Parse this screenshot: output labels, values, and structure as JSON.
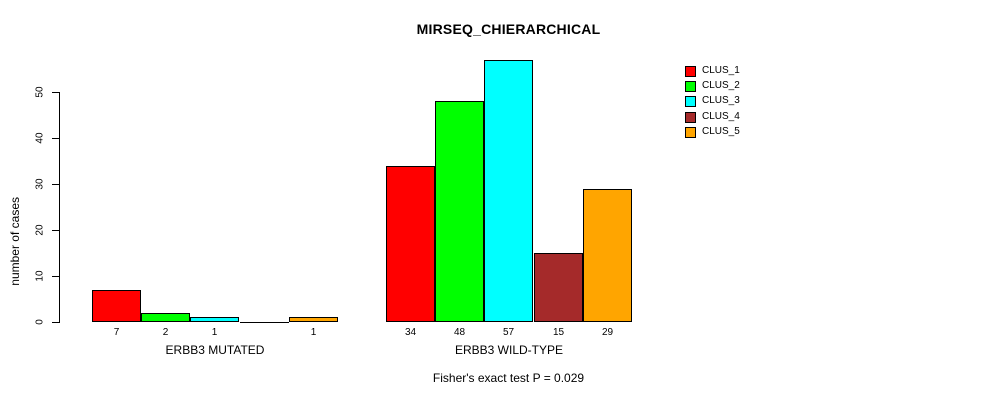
{
  "chart_data": {
    "type": "bar",
    "title": "MIRSEQ_CHIERARCHICAL",
    "ylabel": "number of cases",
    "xlabel": "",
    "ylim": [
      0,
      57
    ],
    "yticks": [
      0,
      10,
      20,
      30,
      40,
      50
    ],
    "grid": false,
    "legend_position": "top-right-outside-bars",
    "categories": [
      "ERBB3 MUTATED",
      "ERBB3 WILD-TYPE"
    ],
    "series": [
      {
        "name": "CLUS_1",
        "color": "#FF0000",
        "values": [
          7,
          34
        ]
      },
      {
        "name": "CLUS_2",
        "color": "#00FF00",
        "values": [
          2,
          48
        ]
      },
      {
        "name": "CLUS_3",
        "color": "#00FFFF",
        "values": [
          1,
          57
        ]
      },
      {
        "name": "CLUS_4",
        "color": "#A52A2A",
        "values": [
          0,
          15
        ]
      },
      {
        "name": "CLUS_5",
        "color": "#FFA500",
        "values": [
          1,
          29
        ]
      }
    ],
    "groups": [
      {
        "label": "ERBB3 MUTATED",
        "values": [
          7,
          2,
          1,
          0,
          1
        ],
        "bar_labels": [
          "7",
          "2",
          "1",
          "",
          "1"
        ]
      },
      {
        "label": "ERBB3 WILD-TYPE",
        "values": [
          34,
          48,
          57,
          15,
          29
        ],
        "bar_labels": [
          "34",
          "48",
          "57",
          "15",
          "29"
        ]
      }
    ],
    "legend": [
      {
        "label": "CLUS_1",
        "color": "#FF0000"
      },
      {
        "label": "CLUS_2",
        "color": "#00FF00"
      },
      {
        "label": "CLUS_3",
        "color": "#00FFFF"
      },
      {
        "label": "CLUS_4",
        "color": "#A52A2A"
      },
      {
        "label": "CLUS_5",
        "color": "#FFA500"
      }
    ],
    "annotation": "Fisher's exact test P = 0.029",
    "axis_color": "#000000",
    "background_color": "#FFFFFF"
  }
}
